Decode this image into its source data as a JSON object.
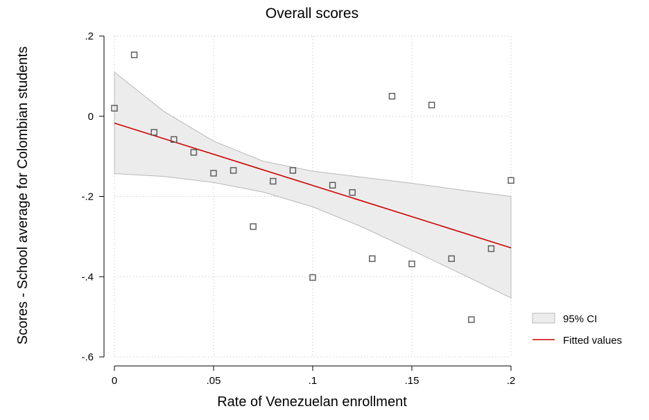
{
  "chart_data": {
    "type": "scatter",
    "title": "Overall scores",
    "xlabel": "Rate of Venezuelan enrollment",
    "ylabel": "Scores - School average for Colombian students",
    "xlim": [
      0,
      0.2
    ],
    "ylim": [
      -0.6,
      0.2
    ],
    "xticks": [
      0,
      0.05,
      0.1,
      0.15,
      0.2
    ],
    "xtick_labels": [
      "0",
      ".05",
      ".1",
      ".15",
      ".2"
    ],
    "yticks": [
      0.2,
      0,
      -0.2,
      -0.4,
      -0.6
    ],
    "ytick_labels": [
      ".2",
      "0",
      "-.2",
      "-.4",
      "-.6"
    ],
    "grid": true,
    "legend_position": "right",
    "colors": {
      "points": "#555555",
      "fit": "#cc0000",
      "ci_fill": "#ececec",
      "ci_edge": "#b8b8b8",
      "grid": "#cccccc"
    },
    "series": [
      {
        "kind": "scatter",
        "points": [
          {
            "x": 0.0,
            "y": 0.02
          },
          {
            "x": 0.01,
            "y": 0.153
          },
          {
            "x": 0.02,
            "y": -0.04
          },
          {
            "x": 0.03,
            "y": -0.058
          },
          {
            "x": 0.04,
            "y": -0.09
          },
          {
            "x": 0.05,
            "y": -0.142
          },
          {
            "x": 0.06,
            "y": -0.135
          },
          {
            "x": 0.07,
            "y": -0.275
          },
          {
            "x": 0.08,
            "y": -0.162
          },
          {
            "x": 0.09,
            "y": -0.135
          },
          {
            "x": 0.1,
            "y": -0.402
          },
          {
            "x": 0.11,
            "y": -0.172
          },
          {
            "x": 0.12,
            "y": -0.19
          },
          {
            "x": 0.13,
            "y": -0.355
          },
          {
            "x": 0.14,
            "y": 0.05
          },
          {
            "x": 0.15,
            "y": -0.368
          },
          {
            "x": 0.16,
            "y": 0.028
          },
          {
            "x": 0.17,
            "y": -0.355
          },
          {
            "x": 0.18,
            "y": -0.507
          },
          {
            "x": 0.19,
            "y": -0.33
          },
          {
            "x": 0.2,
            "y": -0.16
          }
        ]
      },
      {
        "kind": "ci_band",
        "name": "95% CI",
        "x": [
          0,
          0.025,
          0.05,
          0.075,
          0.1,
          0.125,
          0.15,
          0.175,
          0.2
        ],
        "upper": [
          0.11,
          0.012,
          -0.062,
          -0.112,
          -0.137,
          -0.152,
          -0.167,
          -0.184,
          -0.2
        ],
        "lower": [
          -0.143,
          -0.15,
          -0.165,
          -0.189,
          -0.226,
          -0.276,
          -0.334,
          -0.393,
          -0.453
        ]
      },
      {
        "kind": "fit_line",
        "name": "Fitted values",
        "x": [
          0,
          0.2
        ],
        "y": [
          -0.017,
          -0.328
        ]
      }
    ]
  }
}
